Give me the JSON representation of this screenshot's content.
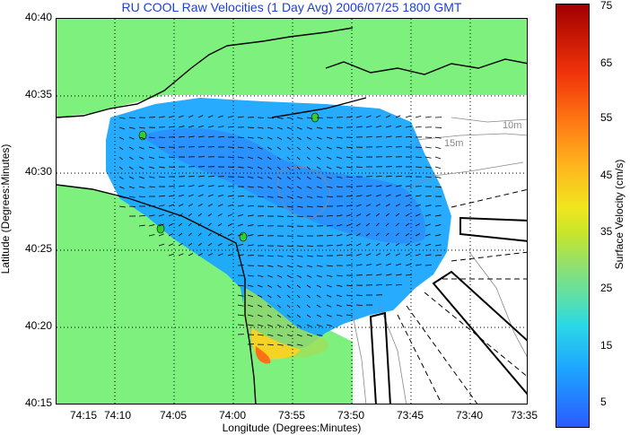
{
  "title": "RU COOL Raw Velocities (1 Day Avg) 2006/07/25 1800 GMT",
  "axes": {
    "xlabel": "Longitude (Degrees:Minutes)",
    "ylabel": "Latitude (Degrees:Minutes)",
    "xticks": [
      "74:15",
      "74:10",
      "74:05",
      "74:00",
      "73:55",
      "73:50",
      "73:45",
      "73:40",
      "73:35"
    ],
    "yticks": [
      "40:40",
      "40:35",
      "40:30",
      "40:25",
      "40:20",
      "40:15"
    ],
    "grid": true
  },
  "colorbar": {
    "title": "Surface Velocity (cm/s)",
    "ticks": [
      "75",
      "65",
      "55",
      "45",
      "35",
      "25",
      "15",
      "5"
    ],
    "range": [
      0,
      75
    ]
  },
  "contour_labels": [
    "10m",
    "15m"
  ],
  "colors": {
    "land": "#7ef07e",
    "water_field": "#1aa6ff",
    "title": "#1d3fd6",
    "station": "#33cc33"
  }
}
